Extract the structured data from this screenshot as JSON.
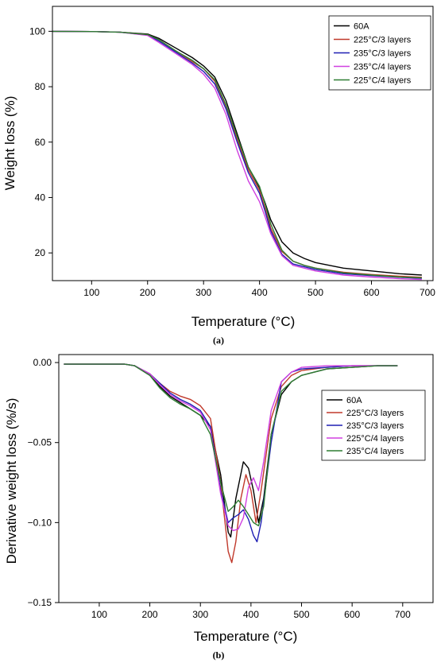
{
  "chart_data": [
    {
      "type": "line",
      "panel_label": "(a)",
      "xlabel": "Temperature (°C)",
      "ylabel": "Weight loss (%)",
      "xlim": [
        30,
        710
      ],
      "ylim": [
        10,
        109
      ],
      "xticks": [
        100,
        200,
        300,
        400,
        500,
        600,
        700
      ],
      "yticks": [
        20,
        40,
        60,
        80,
        100
      ],
      "legend_position": "top-right",
      "series": [
        {
          "name": "60A",
          "color": "#000000",
          "x": [
            30,
            100,
            150,
            200,
            220,
            250,
            280,
            300,
            320,
            340,
            360,
            380,
            400,
            410,
            420,
            440,
            460,
            480,
            500,
            550,
            600,
            650,
            690
          ],
          "y": [
            100,
            99.9,
            99.7,
            99,
            97.5,
            94,
            90.5,
            87.5,
            83.5,
            75,
            63,
            51,
            43.5,
            38,
            32,
            24,
            20,
            18,
            16.5,
            14.5,
            13.5,
            12.5,
            12
          ]
        },
        {
          "name": "225°C/3 layers",
          "color": "#c0392b",
          "x": [
            30,
            100,
            150,
            200,
            220,
            250,
            280,
            300,
            320,
            340,
            360,
            380,
            400,
            410,
            420,
            440,
            460,
            480,
            500,
            550,
            600,
            650,
            690
          ],
          "y": [
            100,
            99.9,
            99.7,
            98.8,
            97,
            93,
            89,
            86.5,
            82,
            73,
            61,
            50,
            42.5,
            36,
            29,
            20.5,
            17,
            15.5,
            14.5,
            13,
            12.2,
            11.6,
            11.2
          ]
        },
        {
          "name": "235°C/3 layers",
          "color": "#1f1fb4",
          "x": [
            30,
            100,
            150,
            200,
            220,
            250,
            280,
            300,
            320,
            340,
            360,
            380,
            400,
            410,
            420,
            440,
            460,
            480,
            500,
            550,
            600,
            650,
            690
          ],
          "y": [
            100,
            99.9,
            99.7,
            98.6,
            96.5,
            92.5,
            88.5,
            85.5,
            81,
            72,
            60,
            49,
            41.5,
            35,
            28,
            19.5,
            16,
            15,
            14,
            12.5,
            11.8,
            11.2,
            10.8
          ]
        },
        {
          "name": "235°C/4 layers",
          "color": "#d040e0",
          "x": [
            30,
            100,
            150,
            200,
            220,
            250,
            280,
            300,
            320,
            340,
            360,
            380,
            400,
            410,
            420,
            440,
            460,
            480,
            500,
            550,
            600,
            650,
            690
          ],
          "y": [
            100,
            99.9,
            99.7,
            98.5,
            96,
            92,
            88,
            84.5,
            79.5,
            70,
            57,
            46,
            38.5,
            33,
            27,
            19,
            15.5,
            14.5,
            13.5,
            12,
            11.3,
            10.7,
            10.4
          ]
        },
        {
          "name": "225°C/4 layers",
          "color": "#2e7d32",
          "x": [
            30,
            100,
            150,
            200,
            220,
            250,
            280,
            300,
            320,
            340,
            360,
            380,
            400,
            410,
            420,
            440,
            460,
            480,
            500,
            550,
            600,
            650,
            690
          ],
          "y": [
            100,
            99.9,
            99.7,
            98.8,
            97,
            93,
            89.5,
            86.5,
            82.5,
            73.5,
            62,
            51,
            44,
            37.5,
            30.5,
            21,
            17,
            15.5,
            14.5,
            12.8,
            12,
            11.3,
            11
          ]
        }
      ]
    },
    {
      "type": "line",
      "panel_label": "(b)",
      "xlabel": "Temperature (°C)",
      "ylabel": "Derivative weight loss (%/s)",
      "xlim": [
        20,
        760
      ],
      "ylim": [
        -0.15,
        0.005
      ],
      "xticks": [
        100,
        200,
        300,
        400,
        500,
        600,
        700
      ],
      "yticks": [
        0.0,
        -0.05,
        -0.1,
        -0.15
      ],
      "ytick_labels": [
        "0.00",
        "−0.05",
        "−0.10",
        "−0.15"
      ],
      "legend_position": "center-right",
      "series": [
        {
          "name": "60A",
          "color": "#000000",
          "x": [
            30,
            100,
            150,
            170,
            200,
            220,
            240,
            260,
            280,
            300,
            320,
            340,
            355,
            360,
            370,
            385,
            395,
            405,
            415,
            425,
            440,
            460,
            480,
            500,
            550,
            600,
            650,
            690
          ],
          "y": [
            -0.001,
            -0.001,
            -0.001,
            -0.002,
            -0.008,
            -0.015,
            -0.021,
            -0.025,
            -0.029,
            -0.033,
            -0.04,
            -0.07,
            -0.106,
            -0.109,
            -0.085,
            -0.062,
            -0.066,
            -0.08,
            -0.1,
            -0.085,
            -0.045,
            -0.02,
            -0.012,
            -0.008,
            -0.004,
            -0.003,
            -0.002,
            -0.002
          ]
        },
        {
          "name": "225°C/3 layers",
          "color": "#c0392b",
          "x": [
            30,
            100,
            150,
            170,
            200,
            220,
            240,
            260,
            280,
            300,
            320,
            340,
            355,
            362,
            370,
            380,
            390,
            400,
            410,
            420,
            440,
            460,
            480,
            500,
            550,
            600,
            650,
            690
          ],
          "y": [
            -0.001,
            -0.001,
            -0.001,
            -0.002,
            -0.007,
            -0.013,
            -0.018,
            -0.021,
            -0.023,
            -0.027,
            -0.035,
            -0.075,
            -0.118,
            -0.125,
            -0.112,
            -0.085,
            -0.07,
            -0.08,
            -0.1,
            -0.08,
            -0.035,
            -0.015,
            -0.008,
            -0.005,
            -0.003,
            -0.002,
            -0.002,
            -0.002
          ]
        },
        {
          "name": "235°C/3 layers",
          "color": "#1f1fb4",
          "x": [
            30,
            100,
            150,
            170,
            200,
            220,
            240,
            260,
            280,
            300,
            320,
            340,
            355,
            365,
            375,
            385,
            395,
            405,
            412,
            420,
            440,
            460,
            480,
            500,
            550,
            600,
            650,
            690
          ],
          "y": [
            -0.001,
            -0.001,
            -0.001,
            -0.002,
            -0.007,
            -0.013,
            -0.019,
            -0.023,
            -0.026,
            -0.03,
            -0.04,
            -0.08,
            -0.1,
            -0.097,
            -0.095,
            -0.092,
            -0.098,
            -0.108,
            -0.112,
            -0.1,
            -0.05,
            -0.012,
            -0.006,
            -0.004,
            -0.003,
            -0.002,
            -0.002,
            -0.002
          ]
        },
        {
          "name": "225°C/4 layers",
          "color": "#d040e0",
          "x": [
            30,
            100,
            150,
            170,
            200,
            220,
            240,
            260,
            280,
            300,
            320,
            340,
            355,
            365,
            375,
            385,
            395,
            405,
            415,
            425,
            440,
            460,
            480,
            500,
            550,
            600,
            650,
            690
          ],
          "y": [
            -0.001,
            -0.001,
            -0.001,
            -0.002,
            -0.007,
            -0.014,
            -0.02,
            -0.024,
            -0.027,
            -0.031,
            -0.042,
            -0.082,
            -0.102,
            -0.105,
            -0.104,
            -0.097,
            -0.078,
            -0.072,
            -0.08,
            -0.062,
            -0.03,
            -0.012,
            -0.006,
            -0.003,
            -0.002,
            -0.002,
            -0.002,
            -0.002
          ]
        },
        {
          "name": "235°C/4 layers",
          "color": "#2e7d32",
          "x": [
            30,
            100,
            150,
            170,
            200,
            220,
            240,
            260,
            280,
            300,
            320,
            340,
            355,
            365,
            375,
            385,
            395,
            405,
            415,
            425,
            440,
            460,
            480,
            500,
            550,
            600,
            650,
            690
          ],
          "y": [
            -0.001,
            -0.001,
            -0.001,
            -0.002,
            -0.008,
            -0.016,
            -0.022,
            -0.026,
            -0.029,
            -0.033,
            -0.045,
            -0.075,
            -0.093,
            -0.09,
            -0.086,
            -0.09,
            -0.095,
            -0.1,
            -0.102,
            -0.09,
            -0.045,
            -0.018,
            -0.012,
            -0.008,
            -0.004,
            -0.003,
            -0.002,
            -0.002
          ]
        }
      ]
    }
  ]
}
